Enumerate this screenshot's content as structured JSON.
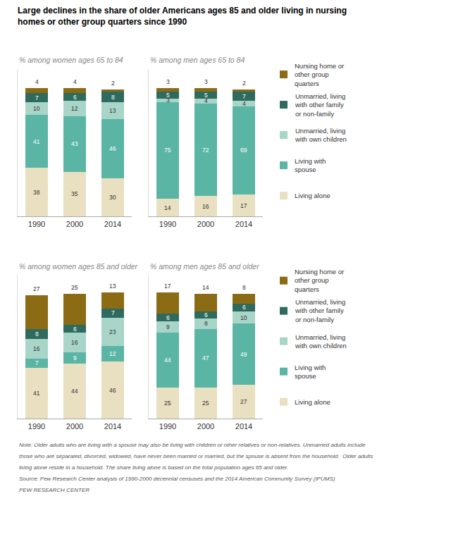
{
  "title": "Large declines in the share of older Americans ages 85 and older living in nursing\nhomes or other group quarters since 1990",
  "annotations": [
    "Note: Older adults who are living with a spouse may also be living with children or other relatives or non-relatives. Unmarried adults include",
    "those who are separated, divorced, widowed, have never been married or married, but the spouse is absent from the household.  Older adults",
    "living alone reside in a household. The share living alone is based on the total population ages 65 and older.",
    "Source: Pew Research Center analysis of 1990-2000 decennial censuses and the 2014 American Community Survey (IPUMS)",
    "PEW RESEARCH CENTER"
  ],
  "chart_data": [
    {
      "type": "bar",
      "title": "% among women ages 65 to 84",
      "stacked": true,
      "data_labels": true,
      "tick_labels": "x",
      "grid": false,
      "categories": [
        "1990",
        "2000",
        "2014"
      ],
      "ylim": [
        0,
        115
      ],
      "yticks": [],
      "series": [
        {
          "name": "Living alone",
          "color": "#E8E0C0",
          "values": [
            38,
            35,
            30
          ]
        },
        {
          "name": "Living with\nspouse",
          "color": "#5BB5A5",
          "values": [
            41,
            43,
            46
          ]
        },
        {
          "name": "Unmarried, living\nwith own children",
          "color": "#A8D5C8",
          "values": [
            10,
            12,
            13
          ]
        },
        {
          "name": "Unmarried, living\nwith other family\nor non-family",
          "color": "#2E6B5E",
          "values": [
            7,
            6,
            8
          ]
        },
        {
          "name": "Nursing home or\nother group\nquarters",
          "color": "#8B6B14",
          "values": [
            4,
            4,
            2
          ]
        }
      ]
    },
    {
      "type": "bar",
      "title": "% among men ages 65 to 84",
      "stacked": true,
      "data_labels": true,
      "tick_labels": "x",
      "grid": false,
      "legend": "right",
      "categories": [
        "1990",
        "2000",
        "2014"
      ],
      "ylim": [
        0,
        115
      ],
      "yticks": [],
      "series": [
        {
          "name": "Living alone",
          "color": "#E8E0C0",
          "values": [
            14,
            16,
            17
          ]
        },
        {
          "name": "Living with\nspouse",
          "color": "#5BB5A5",
          "values": [
            75,
            72,
            69
          ]
        },
        {
          "name": "Unmarried, living\nwith own children",
          "color": "#A8D5C8",
          "values": [
            3,
            4,
            4
          ]
        },
        {
          "name": "Unmarried, living\nwith other family\nor non-family",
          "color": "#2E6B5E",
          "values": [
            5,
            5,
            7
          ]
        },
        {
          "name": "Nursing home or\nother group\nquarters",
          "color": "#8B6B14",
          "values": [
            3,
            3,
            2
          ]
        }
      ]
    },
    {
      "type": "bar",
      "title": "% among women ages 85 and older",
      "stacked": true,
      "data_labels": true,
      "tick_labels": "x",
      "grid": false,
      "categories": [
        "1990",
        "2000",
        "2014"
      ],
      "ylim": [
        0,
        115
      ],
      "yticks": [],
      "series": [
        {
          "name": "Living alone",
          "color": "#E8E0C0",
          "values": [
            41,
            44,
            46
          ]
        },
        {
          "name": "Living with\nspouse",
          "color": "#5BB5A5",
          "values": [
            7,
            9,
            12
          ]
        },
        {
          "name": "Unmarried, living\nwith own children",
          "color": "#A8D5C8",
          "values": [
            16,
            16,
            23
          ]
        },
        {
          "name": "Unmarried, living\nwith other family\nor non-family",
          "color": "#2E6B5E",
          "values": [
            8,
            6,
            7
          ]
        },
        {
          "name": "Nursing home or\nother group\nquarters",
          "color": "#8B6B14",
          "values": [
            27,
            25,
            13
          ]
        }
      ]
    },
    {
      "type": "bar",
      "title": "% among men ages 85 and older",
      "stacked": true,
      "data_labels": true,
      "tick_labels": "x",
      "grid": false,
      "legend": "right",
      "categories": [
        "1990",
        "2000",
        "2014"
      ],
      "ylim": [
        0,
        115
      ],
      "yticks": [],
      "series": [
        {
          "name": "Living alone",
          "color": "#E8E0C0",
          "values": [
            25,
            25,
            27
          ]
        },
        {
          "name": "Living with\nspouse",
          "color": "#5BB5A5",
          "values": [
            44,
            47,
            49
          ]
        },
        {
          "name": "Unmarried, living\nwith own children",
          "color": "#A8D5C8",
          "values": [
            9,
            8,
            10
          ]
        },
        {
          "name": "Unmarried, living\nwith other family\nor non-family",
          "color": "#2E6B5E",
          "values": [
            6,
            6,
            6
          ]
        },
        {
          "name": "Nursing home or\nother group\nquarters",
          "color": "#8B6B14",
          "values": [
            17,
            14,
            8
          ]
        }
      ]
    }
  ]
}
